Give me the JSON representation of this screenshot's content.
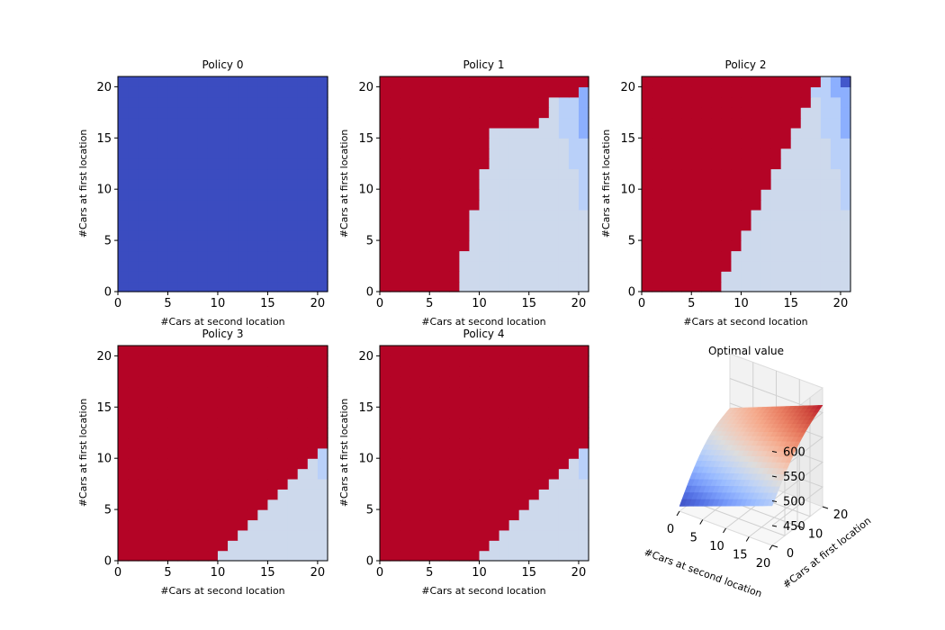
{
  "chart_data": [
    {
      "type": "heatmap",
      "title": "Policy 0",
      "xlabel": "#Cars at second location",
      "ylabel": "#Cars at first location",
      "xlim": [
        0,
        21
      ],
      "ylim": [
        0,
        21
      ],
      "xticks": [
        "0",
        "5",
        "10",
        "15",
        "20"
      ],
      "yticks": [
        "0",
        "5",
        "10",
        "15",
        "20"
      ],
      "colormap": "coolwarm",
      "vmin": -5,
      "vmax": 5,
      "description": "uniform: action 0 for every state",
      "uniform_value": 0
    },
    {
      "type": "heatmap",
      "title": "Policy 1",
      "xlabel": "#Cars at second location",
      "ylabel": "#Cars at first location",
      "xlim": [
        0,
        21
      ],
      "ylim": [
        0,
        21
      ],
      "xticks": [
        "0",
        "5",
        "10",
        "15",
        "20"
      ],
      "yticks": [
        "0",
        "5",
        "10",
        "15",
        "20"
      ],
      "colormap": "coolwarm",
      "vmin": -5,
      "vmax": 5,
      "boundaries": {
        "b5": [
          8,
          8,
          8,
          8,
          9,
          9,
          9,
          9,
          10,
          10,
          10,
          10,
          11,
          11,
          11,
          11,
          16,
          17,
          17,
          20,
          21
        ],
        "b4": [
          7,
          7,
          7,
          7,
          8,
          8,
          8,
          8,
          9,
          9,
          9,
          9,
          10,
          10,
          10,
          10,
          14,
          15,
          15,
          19,
          21
        ],
        "b3": [
          6,
          6,
          6,
          6,
          7,
          7,
          7,
          7,
          8,
          8,
          8,
          8,
          9,
          9,
          9,
          9,
          12,
          13,
          13,
          18,
          21
        ],
        "b2": [
          5,
          5,
          5,
          5,
          6,
          6,
          6,
          6,
          7,
          7,
          7,
          7,
          8,
          8,
          8,
          8,
          10,
          11,
          11,
          17,
          21
        ],
        "b1": [
          4,
          4,
          4,
          4,
          5,
          5,
          5,
          5,
          6,
          6,
          6,
          6,
          7,
          7,
          7,
          7,
          8,
          9,
          9,
          16,
          21
        ],
        "n1": [
          0,
          0,
          0,
          0,
          0,
          0,
          0,
          0,
          1,
          1,
          1,
          1,
          2,
          2,
          2,
          3,
          3,
          3,
          3,
          4,
          4
        ],
        "n2": [
          0,
          0,
          0,
          0,
          0,
          0,
          0,
          0,
          0,
          0,
          0,
          0,
          0,
          0,
          0,
          1,
          1,
          1,
          1,
          3,
          3
        ],
        "n3": [
          0,
          0,
          0,
          0,
          0,
          0,
          0,
          0,
          0,
          0,
          0,
          0,
          0,
          0,
          0,
          0,
          0,
          0,
          0,
          0,
          2
        ]
      }
    },
    {
      "type": "heatmap",
      "title": "Policy 2",
      "xlabel": "#Cars at second location",
      "ylabel": "#Cars at first location",
      "xlim": [
        0,
        21
      ],
      "ylim": [
        0,
        21
      ],
      "xticks": [
        "0",
        "5",
        "10",
        "15",
        "20"
      ],
      "yticks": [
        "0",
        "5",
        "10",
        "15",
        "20"
      ],
      "colormap": "coolwarm",
      "vmin": -5,
      "vmax": 5,
      "boundaries": {
        "b5": [
          8,
          8,
          9,
          9,
          10,
          10,
          11,
          11,
          12,
          12,
          13,
          13,
          14,
          14,
          15,
          15,
          16,
          16,
          17,
          17,
          18
        ],
        "b4": [
          7,
          7,
          8,
          8,
          9,
          9,
          10,
          10,
          11,
          11,
          12,
          12,
          13,
          13,
          14,
          14,
          15,
          15,
          16,
          16,
          17
        ],
        "b3": [
          6,
          6,
          7,
          7,
          8,
          8,
          9,
          9,
          10,
          10,
          11,
          11,
          12,
          12,
          13,
          13,
          14,
          14,
          15,
          15,
          16
        ],
        "b2": [
          5,
          5,
          6,
          6,
          7,
          7,
          8,
          8,
          9,
          9,
          10,
          10,
          11,
          11,
          12,
          12,
          13,
          13,
          14,
          14,
          15
        ],
        "b1": [
          4,
          4,
          5,
          5,
          6,
          6,
          7,
          7,
          8,
          8,
          9,
          9,
          10,
          10,
          11,
          11,
          12,
          12,
          13,
          13,
          14
        ],
        "n1": [
          0,
          0,
          0,
          0,
          0,
          0,
          0,
          0,
          1,
          1,
          1,
          1,
          2,
          2,
          2,
          3,
          3,
          3,
          3,
          4,
          4
        ],
        "n2": [
          0,
          0,
          0,
          0,
          0,
          0,
          0,
          0,
          0,
          0,
          0,
          0,
          0,
          0,
          0,
          1,
          1,
          1,
          1,
          2,
          2
        ],
        "n3": [
          0,
          0,
          0,
          0,
          0,
          0,
          0,
          0,
          0,
          0,
          0,
          0,
          0,
          0,
          0,
          0,
          0,
          0,
          0,
          0,
          1
        ]
      }
    },
    {
      "type": "heatmap",
      "title": "Policy 3",
      "xlabel": "#Cars at second location",
      "ylabel": "#Cars at first location",
      "xlim": [
        0,
        21
      ],
      "ylim": [
        0,
        21
      ],
      "xticks": [
        "0",
        "5",
        "10",
        "15",
        "20"
      ],
      "yticks": [
        "0",
        "5",
        "10",
        "15",
        "20"
      ],
      "colormap": "coolwarm",
      "vmin": -5,
      "vmax": 5,
      "boundaries": {
        "b5": [
          10,
          11,
          12,
          13,
          14,
          15,
          16,
          17,
          18,
          19,
          20,
          21,
          21,
          21,
          21,
          21,
          21,
          21,
          21,
          21,
          21
        ],
        "b4": [
          8,
          9,
          10,
          11,
          12,
          13,
          14,
          15,
          16,
          17,
          18,
          19,
          20,
          21,
          21,
          21,
          21,
          21,
          21,
          21,
          21
        ],
        "b3": [
          7,
          8,
          9,
          10,
          11,
          12,
          13,
          14,
          15,
          16,
          17,
          18,
          19,
          20,
          21,
          21,
          21,
          21,
          21,
          21,
          21
        ],
        "b2": [
          6,
          7,
          8,
          9,
          10,
          11,
          12,
          13,
          14,
          15,
          16,
          17,
          18,
          19,
          20,
          21,
          21,
          21,
          21,
          21,
          21
        ],
        "b1": [
          5,
          6,
          7,
          8,
          9,
          10,
          11,
          12,
          13,
          14,
          15,
          16,
          17,
          18,
          19,
          20,
          21,
          21,
          21,
          21,
          21
        ],
        "n1": [
          0,
          0,
          0,
          0,
          0,
          0,
          0,
          0,
          1,
          1,
          2,
          2,
          3,
          3,
          3,
          3,
          3,
          3,
          3,
          4,
          5
        ],
        "n2": [
          0,
          0,
          0,
          0,
          0,
          0,
          0,
          0,
          0,
          0,
          0,
          1,
          1,
          1,
          1,
          1,
          2,
          2,
          2,
          3,
          3
        ],
        "n3": [
          0,
          0,
          0,
          0,
          0,
          0,
          0,
          0,
          0,
          0,
          0,
          0,
          0,
          0,
          0,
          0,
          0,
          0,
          1,
          1,
          1
        ]
      }
    },
    {
      "type": "heatmap",
      "title": "Policy 4",
      "xlabel": "#Cars at second location",
      "ylabel": "#Cars at first location",
      "xlim": [
        0,
        21
      ],
      "ylim": [
        0,
        21
      ],
      "xticks": [
        "0",
        "5",
        "10",
        "15",
        "20"
      ],
      "yticks": [
        "0",
        "5",
        "10",
        "15",
        "20"
      ],
      "colormap": "coolwarm",
      "vmin": -5,
      "vmax": 5,
      "boundaries": {
        "b5": [
          10,
          11,
          12,
          13,
          14,
          15,
          16,
          17,
          18,
          19,
          20,
          21,
          21,
          21,
          21,
          21,
          21,
          21,
          21,
          21,
          21
        ],
        "b4": [
          8,
          9,
          10,
          11,
          12,
          13,
          14,
          15,
          16,
          17,
          18,
          19,
          20,
          21,
          21,
          21,
          21,
          21,
          21,
          21,
          21
        ],
        "b3": [
          7,
          8,
          9,
          10,
          11,
          12,
          13,
          14,
          15,
          16,
          17,
          18,
          19,
          20,
          21,
          21,
          21,
          21,
          21,
          21,
          21
        ],
        "b2": [
          6,
          7,
          8,
          9,
          10,
          11,
          12,
          13,
          14,
          15,
          16,
          17,
          18,
          19,
          20,
          21,
          21,
          21,
          21,
          21,
          21
        ],
        "b1": [
          5,
          6,
          7,
          8,
          9,
          10,
          11,
          12,
          13,
          14,
          15,
          16,
          17,
          18,
          19,
          20,
          21,
          21,
          21,
          21,
          21
        ],
        "n1": [
          0,
          0,
          0,
          0,
          0,
          0,
          0,
          0,
          1,
          1,
          2,
          2,
          3,
          3,
          3,
          3,
          3,
          3,
          3,
          4,
          5
        ],
        "n2": [
          0,
          0,
          0,
          0,
          0,
          0,
          0,
          0,
          0,
          0,
          0,
          1,
          1,
          1,
          1,
          1,
          2,
          2,
          2,
          3,
          3
        ],
        "n3": [
          0,
          0,
          0,
          0,
          0,
          0,
          0,
          0,
          0,
          0,
          0,
          0,
          0,
          0,
          0,
          0,
          0,
          0,
          1,
          1,
          1
        ]
      }
    },
    {
      "type": "surface",
      "title": "Optimal value",
      "xlabel": "#Cars at second location",
      "ylabel": "#Cars at first location",
      "xticks": [
        "0",
        "5",
        "10",
        "15",
        "20"
      ],
      "yticks": [
        "0",
        "10",
        "20"
      ],
      "zticks": [
        "450",
        "500",
        "550",
        "600"
      ],
      "zlim": [
        410,
        630
      ],
      "colormap": "coolwarm",
      "corner_values": {
        "x0_y0": 420,
        "x20_y0": 490,
        "x0_y20": 540,
        "x20_y20": 615
      }
    }
  ]
}
